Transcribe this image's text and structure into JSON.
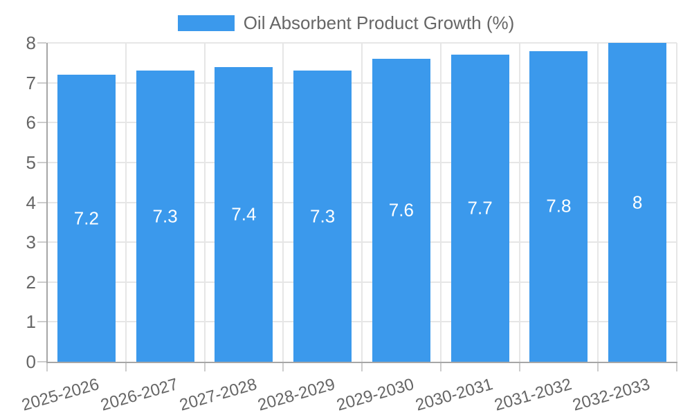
{
  "colors": {
    "bar": "#3b99ec",
    "grid": "#e6e6e6",
    "axis": "#a6a6a6",
    "tick_mark": "#cccccc",
    "text": "#666666",
    "bar_label_text": "#ffffff",
    "background": "#ffffff"
  },
  "legend": {
    "label": "Oil Absorbent Product Growth (%)"
  },
  "chart_data": {
    "type": "bar",
    "title": "Oil Absorbent Product Growth (%)",
    "series_name": "Oil Absorbent Product Growth (%)",
    "categories": [
      "2025-2026",
      "2026-2027",
      "2027-2028",
      "2028-2029",
      "2029-2030",
      "2030-2031",
      "2031-2032",
      "2032-2033"
    ],
    "values": [
      7.2,
      7.3,
      7.4,
      7.3,
      7.6,
      7.7,
      7.8,
      8
    ],
    "bar_value_labels": [
      "7.2",
      "7.3",
      "7.4",
      "7.3",
      "7.6",
      "7.7",
      "7.8",
      "8"
    ],
    "xlabel": "",
    "ylabel": "",
    "ylim": [
      0,
      8
    ],
    "ytick_values": [
      0,
      1,
      2,
      3,
      4,
      5,
      6,
      7,
      8
    ],
    "grid": true,
    "legend_position": "top",
    "x_label_rotation_deg": -16
  }
}
